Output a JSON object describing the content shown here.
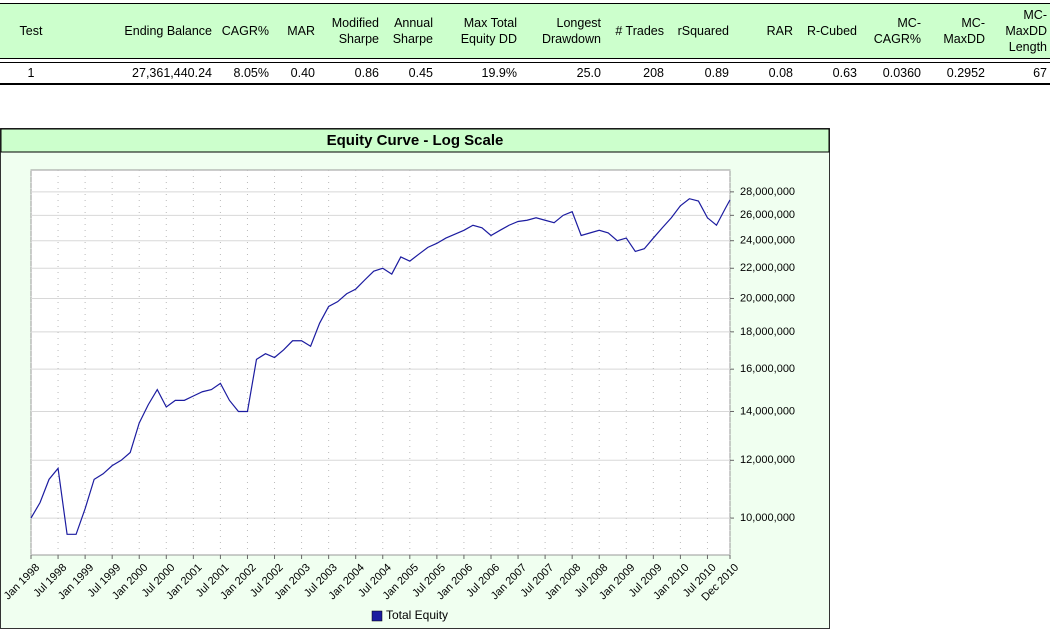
{
  "table": {
    "columns": [
      "Test",
      "Ending Balance",
      "CAGR%",
      "MAR",
      "Modified Sharpe",
      "Annual Sharpe",
      "Max Total Equity DD",
      "Longest Drawdown",
      "# Trades",
      "rSquared",
      "RAR",
      "R-Cubed",
      "MC-CAGR%",
      "MC-MaxDD",
      "MC-MaxDD Length"
    ],
    "rows": [
      [
        "1",
        "27,361,440.24",
        "8.05%",
        "0.40",
        "0.86",
        "0.45",
        "19.9%",
        "25.0",
        "208",
        "0.89",
        "0.08",
        "0.63",
        "0.0360",
        "0.2952",
        "67"
      ]
    ]
  },
  "chart_data": {
    "type": "line",
    "title": "Equity Curve - Log Scale",
    "x": [
      "1998-01",
      "1998-03",
      "1998-05",
      "1998-07",
      "1998-09",
      "1998-11",
      "1999-01",
      "1999-03",
      "1999-05",
      "1999-07",
      "1999-09",
      "1999-11",
      "2000-01",
      "2000-03",
      "2000-05",
      "2000-07",
      "2000-09",
      "2000-11",
      "2001-01",
      "2001-03",
      "2001-05",
      "2001-07",
      "2001-09",
      "2001-11",
      "2002-01",
      "2002-03",
      "2002-05",
      "2002-07",
      "2002-09",
      "2002-11",
      "2003-01",
      "2003-03",
      "2003-05",
      "2003-07",
      "2003-09",
      "2003-11",
      "2004-01",
      "2004-03",
      "2004-05",
      "2004-07",
      "2004-09",
      "2004-11",
      "2005-01",
      "2005-03",
      "2005-05",
      "2005-07",
      "2005-09",
      "2005-11",
      "2006-01",
      "2006-03",
      "2006-05",
      "2006-07",
      "2006-09",
      "2006-11",
      "2007-01",
      "2007-03",
      "2007-05",
      "2007-07",
      "2007-09",
      "2007-11",
      "2008-01",
      "2008-03",
      "2008-05",
      "2008-07",
      "2008-09",
      "2008-11",
      "2009-01",
      "2009-03",
      "2009-05",
      "2009-07",
      "2009-09",
      "2009-11",
      "2010-01",
      "2010-03",
      "2010-05",
      "2010-07",
      "2010-09",
      "2010-11",
      "2010-12"
    ],
    "series": [
      {
        "name": "Total Equity",
        "color": "#1c1ca0",
        "values": [
          10000000,
          10500000,
          11300000,
          11700000,
          9500000,
          9500000,
          10300000,
          11300000,
          11500000,
          11800000,
          12000000,
          12300000,
          13500000,
          14300000,
          15000000,
          14200000,
          14500000,
          14500000,
          14700000,
          14900000,
          15000000,
          15300000,
          14500000,
          14000000,
          14000000,
          16500000,
          16800000,
          16600000,
          17000000,
          17500000,
          17500000,
          17200000,
          18500000,
          19500000,
          19800000,
          20300000,
          20600000,
          21200000,
          21800000,
          22000000,
          21600000,
          22800000,
          22500000,
          23000000,
          23500000,
          23800000,
          24200000,
          24500000,
          24800000,
          25200000,
          25000000,
          24400000,
          24800000,
          25200000,
          25500000,
          25600000,
          25800000,
          25600000,
          25400000,
          26000000,
          26300000,
          24400000,
          24600000,
          24800000,
          24600000,
          24000000,
          24200000,
          23200000,
          23400000,
          24200000,
          25000000,
          25800000,
          26800000,
          27400000,
          27200000,
          25800000,
          25200000,
          26600000,
          27300000
        ]
      }
    ],
    "xlim": [
      "1998-01",
      "2010-12"
    ],
    "xticks": [
      {
        "value": "1998-01",
        "label": "Jan 1998"
      },
      {
        "value": "1998-07",
        "label": "Jul 1998"
      },
      {
        "value": "1999-01",
        "label": "Jan 1999"
      },
      {
        "value": "1999-07",
        "label": "Jul 1999"
      },
      {
        "value": "2000-01",
        "label": "Jan 2000"
      },
      {
        "value": "2000-07",
        "label": "Jul 2000"
      },
      {
        "value": "2001-01",
        "label": "Jan 2001"
      },
      {
        "value": "2001-07",
        "label": "Jul 2001"
      },
      {
        "value": "2002-01",
        "label": "Jan 2002"
      },
      {
        "value": "2002-07",
        "label": "Jul 2002"
      },
      {
        "value": "2003-01",
        "label": "Jan 2003"
      },
      {
        "value": "2003-07",
        "label": "Jul 2003"
      },
      {
        "value": "2004-01",
        "label": "Jan 2004"
      },
      {
        "value": "2004-07",
        "label": "Jul 2004"
      },
      {
        "value": "2005-01",
        "label": "Jan 2005"
      },
      {
        "value": "2005-07",
        "label": "Jul 2005"
      },
      {
        "value": "2006-01",
        "label": "Jan 2006"
      },
      {
        "value": "2006-07",
        "label": "Jul 2006"
      },
      {
        "value": "2007-01",
        "label": "Jan 2007"
      },
      {
        "value": "2007-07",
        "label": "Jul 2007"
      },
      {
        "value": "2008-01",
        "label": "Jan 2008"
      },
      {
        "value": "2008-07",
        "label": "Jul 2008"
      },
      {
        "value": "2009-01",
        "label": "Jan 2009"
      },
      {
        "value": "2009-07",
        "label": "Jul 2009"
      },
      {
        "value": "2010-01",
        "label": "Jan 2010"
      },
      {
        "value": "2010-07",
        "label": "Jul 2010"
      },
      {
        "value": "2010-12",
        "label": "Dec 2010"
      }
    ],
    "ylim": [
      8900000,
      30000000
    ],
    "yticks": [
      {
        "value": 10000000,
        "label": "10,000,000"
      },
      {
        "value": 12000000,
        "label": "12,000,000"
      },
      {
        "value": 14000000,
        "label": "14,000,000"
      },
      {
        "value": 16000000,
        "label": "16,000,000"
      },
      {
        "value": 18000000,
        "label": "18,000,000"
      },
      {
        "value": 20000000,
        "label": "20,000,000"
      },
      {
        "value": 22000000,
        "label": "22,000,000"
      },
      {
        "value": 24000000,
        "label": "24,000,000"
      },
      {
        "value": 26000000,
        "label": "26,000,000"
      },
      {
        "value": 28000000,
        "label": "28,000,000"
      }
    ],
    "log_y": true,
    "grid": true,
    "legend": "bottom"
  }
}
